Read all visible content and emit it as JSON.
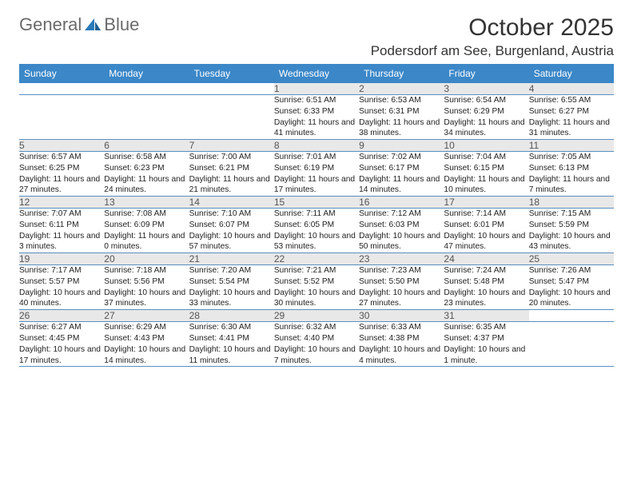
{
  "logo": {
    "text1": "General",
    "text2": "Blue"
  },
  "title": "October 2025",
  "location": "Podersdorf am See, Burgenland, Austria",
  "colors": {
    "header_bg": "#3b87c8",
    "header_text": "#ffffff",
    "daynum_bg": "#e8e8e8",
    "rule": "#5a8fc0",
    "logo_gray": "#6a6a6a",
    "logo_blue": "#2a7ab9"
  },
  "columns": [
    "Sunday",
    "Monday",
    "Tuesday",
    "Wednesday",
    "Thursday",
    "Friday",
    "Saturday"
  ],
  "weeks": [
    [
      null,
      null,
      null,
      {
        "n": "1",
        "sr": "6:51 AM",
        "ss": "6:33 PM",
        "dl": "11 hours and 41 minutes."
      },
      {
        "n": "2",
        "sr": "6:53 AM",
        "ss": "6:31 PM",
        "dl": "11 hours and 38 minutes."
      },
      {
        "n": "3",
        "sr": "6:54 AM",
        "ss": "6:29 PM",
        "dl": "11 hours and 34 minutes."
      },
      {
        "n": "4",
        "sr": "6:55 AM",
        "ss": "6:27 PM",
        "dl": "11 hours and 31 minutes."
      }
    ],
    [
      {
        "n": "5",
        "sr": "6:57 AM",
        "ss": "6:25 PM",
        "dl": "11 hours and 27 minutes."
      },
      {
        "n": "6",
        "sr": "6:58 AM",
        "ss": "6:23 PM",
        "dl": "11 hours and 24 minutes."
      },
      {
        "n": "7",
        "sr": "7:00 AM",
        "ss": "6:21 PM",
        "dl": "11 hours and 21 minutes."
      },
      {
        "n": "8",
        "sr": "7:01 AM",
        "ss": "6:19 PM",
        "dl": "11 hours and 17 minutes."
      },
      {
        "n": "9",
        "sr": "7:02 AM",
        "ss": "6:17 PM",
        "dl": "11 hours and 14 minutes."
      },
      {
        "n": "10",
        "sr": "7:04 AM",
        "ss": "6:15 PM",
        "dl": "11 hours and 10 minutes."
      },
      {
        "n": "11",
        "sr": "7:05 AM",
        "ss": "6:13 PM",
        "dl": "11 hours and 7 minutes."
      }
    ],
    [
      {
        "n": "12",
        "sr": "7:07 AM",
        "ss": "6:11 PM",
        "dl": "11 hours and 3 minutes."
      },
      {
        "n": "13",
        "sr": "7:08 AM",
        "ss": "6:09 PM",
        "dl": "11 hours and 0 minutes."
      },
      {
        "n": "14",
        "sr": "7:10 AM",
        "ss": "6:07 PM",
        "dl": "10 hours and 57 minutes."
      },
      {
        "n": "15",
        "sr": "7:11 AM",
        "ss": "6:05 PM",
        "dl": "10 hours and 53 minutes."
      },
      {
        "n": "16",
        "sr": "7:12 AM",
        "ss": "6:03 PM",
        "dl": "10 hours and 50 minutes."
      },
      {
        "n": "17",
        "sr": "7:14 AM",
        "ss": "6:01 PM",
        "dl": "10 hours and 47 minutes."
      },
      {
        "n": "18",
        "sr": "7:15 AM",
        "ss": "5:59 PM",
        "dl": "10 hours and 43 minutes."
      }
    ],
    [
      {
        "n": "19",
        "sr": "7:17 AM",
        "ss": "5:57 PM",
        "dl": "10 hours and 40 minutes."
      },
      {
        "n": "20",
        "sr": "7:18 AM",
        "ss": "5:56 PM",
        "dl": "10 hours and 37 minutes."
      },
      {
        "n": "21",
        "sr": "7:20 AM",
        "ss": "5:54 PM",
        "dl": "10 hours and 33 minutes."
      },
      {
        "n": "22",
        "sr": "7:21 AM",
        "ss": "5:52 PM",
        "dl": "10 hours and 30 minutes."
      },
      {
        "n": "23",
        "sr": "7:23 AM",
        "ss": "5:50 PM",
        "dl": "10 hours and 27 minutes."
      },
      {
        "n": "24",
        "sr": "7:24 AM",
        "ss": "5:48 PM",
        "dl": "10 hours and 23 minutes."
      },
      {
        "n": "25",
        "sr": "7:26 AM",
        "ss": "5:47 PM",
        "dl": "10 hours and 20 minutes."
      }
    ],
    [
      {
        "n": "26",
        "sr": "6:27 AM",
        "ss": "4:45 PM",
        "dl": "10 hours and 17 minutes."
      },
      {
        "n": "27",
        "sr": "6:29 AM",
        "ss": "4:43 PM",
        "dl": "10 hours and 14 minutes."
      },
      {
        "n": "28",
        "sr": "6:30 AM",
        "ss": "4:41 PM",
        "dl": "10 hours and 11 minutes."
      },
      {
        "n": "29",
        "sr": "6:32 AM",
        "ss": "4:40 PM",
        "dl": "10 hours and 7 minutes."
      },
      {
        "n": "30",
        "sr": "6:33 AM",
        "ss": "4:38 PM",
        "dl": "10 hours and 4 minutes."
      },
      {
        "n": "31",
        "sr": "6:35 AM",
        "ss": "4:37 PM",
        "dl": "10 hours and 1 minute."
      },
      null
    ]
  ],
  "labels": {
    "sunrise": "Sunrise:",
    "sunset": "Sunset:",
    "daylight": "Daylight:"
  }
}
